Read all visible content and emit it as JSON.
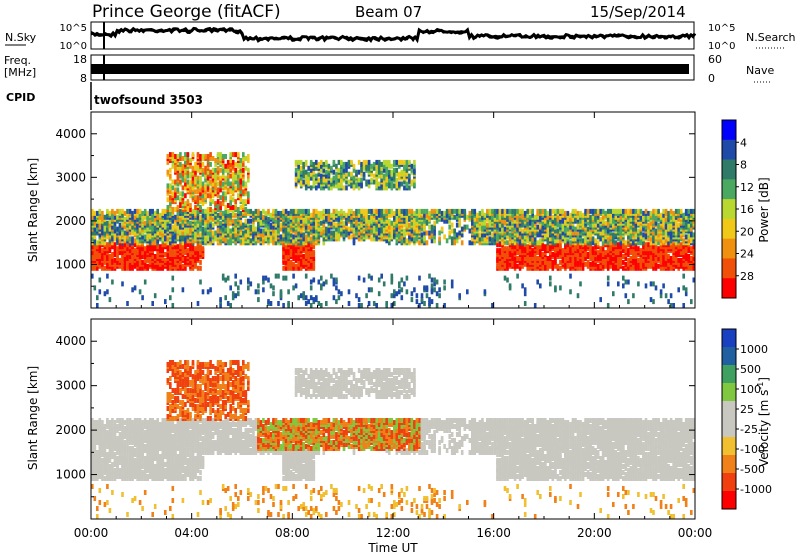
{
  "header": {
    "title": "Prince George (fitACF)",
    "beam": "Beam 07",
    "date": "15/Sep/2014"
  },
  "nsky_panel": {
    "label": "N.Sky",
    "right_label": "N.Search",
    "left_ticks": [
      "10^5",
      "10^0"
    ],
    "right_ticks": [
      "10^5",
      "10^0"
    ]
  },
  "freq_panel": {
    "label_top": "Freq.",
    "label_bottom": "[MHz]",
    "right_label": "Nave",
    "left_ticks": [
      "18",
      "8"
    ],
    "right_ticks": [
      "60",
      "0"
    ]
  },
  "cpid": {
    "label": "CPID",
    "value": "twofsound 3503"
  },
  "chart_data": [
    {
      "type": "heatmap",
      "ylabel": "Slant Range [km]",
      "ylim": [
        0,
        4500
      ],
      "yticks": [
        "1000",
        "2000",
        "3000",
        "4000"
      ],
      "xlabel": "Time UT",
      "xticks": [
        "00:00",
        "04:00",
        "08:00",
        "12:00",
        "16:00",
        "20:00",
        "00:00"
      ],
      "colorbar": {
        "label": "Power [dB]",
        "ticks": [
          "4",
          "8",
          "12",
          "16",
          "20",
          "24",
          "28"
        ],
        "colors": [
          "#0000ff",
          "#1f4aa8",
          "#2f7a68",
          "#4aa860",
          "#b8d830",
          "#f0c818",
          "#f09010",
          "#f05008",
          "#ff0000"
        ]
      }
    },
    {
      "type": "heatmap",
      "ylabel": "Slant Range [km]",
      "ylim": [
        0,
        4500
      ],
      "yticks": [
        "1000",
        "2000",
        "3000",
        "4000"
      ],
      "colorbar": {
        "label": "Velocity [m s-1]",
        "ticks": [
          "1000",
          "500",
          "100",
          "25",
          "-25",
          "-100",
          "-500",
          "-1000"
        ],
        "colors": [
          "#1840c0",
          "#2060a0",
          "#40a060",
          "#80c840",
          "#c8c8c0",
          "#c8c8c0",
          "#f0c030",
          "#f08018",
          "#f04010",
          "#ff0000"
        ]
      }
    }
  ]
}
